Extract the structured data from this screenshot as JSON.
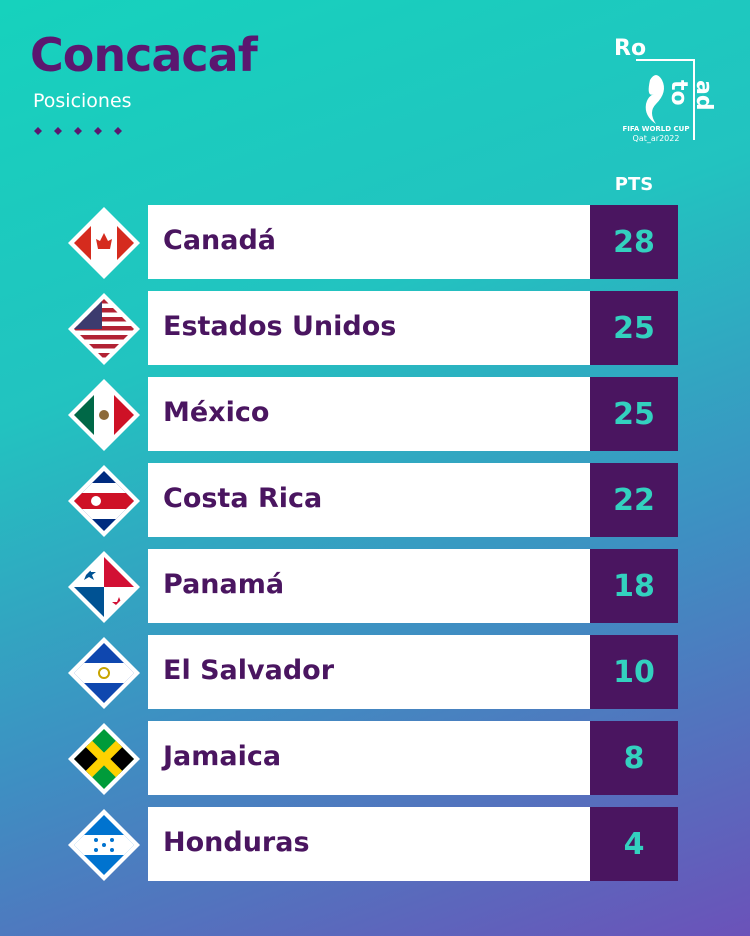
{
  "header": {
    "title": "Concacaf",
    "subtitle": "Posiciones"
  },
  "logo": {
    "top": "Ro",
    "side": "ad to",
    "line1": "FIFA WORLD CUP",
    "line2": "Qat_ar2022"
  },
  "table": {
    "column": "PTS",
    "rows": [
      [
        "Canadá",
        "28"
      ],
      [
        "Estados Unidos",
        "25"
      ],
      [
        "México",
        "25"
      ],
      [
        "Costa Rica",
        "22"
      ],
      [
        "Panamá",
        "18"
      ],
      [
        "El Salvador",
        "10"
      ],
      [
        "Jamaica",
        "8"
      ],
      [
        "Honduras",
        "4"
      ]
    ]
  }
}
